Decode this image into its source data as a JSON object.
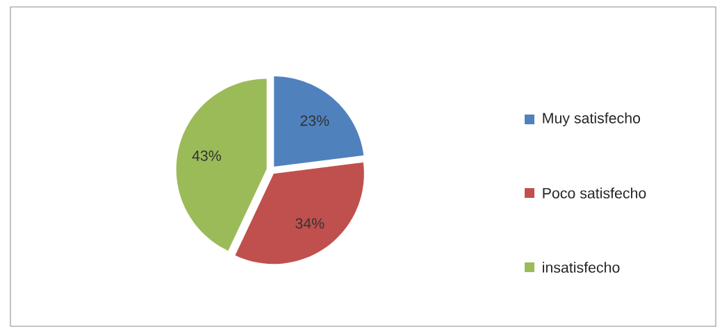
{
  "chart_data": {
    "type": "pie",
    "categories": [
      "Muy satisfecho",
      "Poco satisfecho",
      "insatisfecho"
    ],
    "values": [
      23,
      34,
      43
    ],
    "value_labels": [
      "23%",
      "34%",
      "43%"
    ],
    "colors": [
      "#4f81bd",
      "#c0504d",
      "#9bbb59"
    ],
    "legend": "right"
  }
}
